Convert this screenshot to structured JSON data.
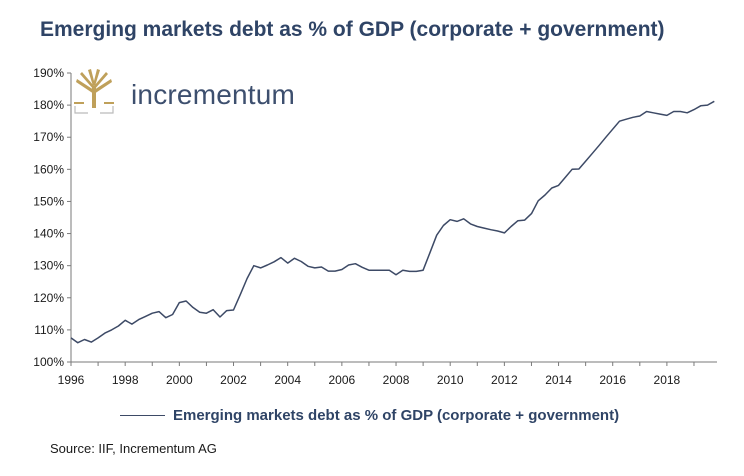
{
  "title": "Emerging markets debt as % of GDP (corporate + government)",
  "brand": {
    "name": "incrementum",
    "logo_icon": "tree-logo-icon",
    "color": "#bfa05a"
  },
  "source": "Source: IIF, Incrementum AG",
  "chart_data": {
    "type": "line",
    "title": "Emerging markets debt as % of GDP (corporate + government)",
    "xlabel": "",
    "ylabel": "",
    "xlim": [
      1996,
      2019.85
    ],
    "ylim": [
      100,
      190
    ],
    "x_ticks": [
      1996,
      1998,
      2000,
      2002,
      2004,
      2006,
      2008,
      2010,
      2012,
      2014,
      2016,
      2018
    ],
    "x_tick_labels": [
      "1996",
      "1998",
      "2000",
      "2002",
      "2004",
      "2006",
      "2008",
      "2010",
      "2012",
      "2014",
      "2016",
      "2018"
    ],
    "y_ticks": [
      100,
      110,
      120,
      130,
      140,
      150,
      160,
      170,
      180,
      190
    ],
    "y_tick_labels": [
      "100%",
      "110%",
      "120%",
      "130%",
      "140%",
      "150%",
      "160%",
      "170%",
      "180%",
      "190%"
    ],
    "grid": false,
    "legend_position": "bottom",
    "series": [
      {
        "name": "Emerging markets debt as % of GDP (corporate + government)",
        "color": "#3d4a66",
        "x": [
          1996.0,
          1996.25,
          1996.5,
          1996.75,
          1997.0,
          1997.25,
          1997.5,
          1997.75,
          1998.0,
          1998.25,
          1998.5,
          1998.75,
          1999.0,
          1999.25,
          1999.5,
          1999.75,
          2000.0,
          2000.25,
          2000.5,
          2000.75,
          2001.0,
          2001.25,
          2001.5,
          2001.75,
          2002.0,
          2002.25,
          2002.5,
          2002.75,
          2003.0,
          2003.25,
          2003.5,
          2003.75,
          2004.0,
          2004.25,
          2004.5,
          2004.75,
          2005.0,
          2005.25,
          2005.5,
          2005.75,
          2006.0,
          2006.25,
          2006.5,
          2006.75,
          2007.0,
          2007.25,
          2007.5,
          2007.75,
          2008.0,
          2008.25,
          2008.5,
          2008.75,
          2009.0,
          2009.25,
          2009.5,
          2009.75,
          2010.0,
          2010.25,
          2010.5,
          2010.75,
          2011.0,
          2011.25,
          2011.5,
          2011.75,
          2012.0,
          2012.25,
          2012.5,
          2012.75,
          2013.0,
          2013.25,
          2013.5,
          2013.75,
          2014.0,
          2014.25,
          2014.5,
          2014.75,
          2015.0,
          2015.25,
          2015.5,
          2015.75,
          2016.0,
          2016.25,
          2016.5,
          2016.75,
          2017.0,
          2017.25,
          2017.5,
          2017.75,
          2018.0,
          2018.25,
          2018.5,
          2018.75,
          2019.0,
          2019.25,
          2019.5,
          2019.75
        ],
        "y": [
          107.5,
          106.0,
          107.0,
          106.2,
          107.5,
          109.0,
          110.0,
          111.2,
          113.0,
          111.8,
          113.2,
          114.2,
          115.2,
          115.7,
          113.8,
          114.8,
          118.5,
          119.0,
          117.0,
          115.5,
          115.2,
          116.3,
          114.0,
          116.0,
          116.2,
          121.0,
          126.0,
          130.0,
          129.3,
          130.2,
          131.2,
          132.5,
          130.8,
          132.3,
          131.3,
          129.8,
          129.3,
          129.6,
          128.3,
          128.3,
          128.8,
          130.2,
          130.6,
          129.5,
          128.6,
          128.6,
          128.6,
          128.6,
          127.2,
          128.6,
          128.2,
          128.2,
          128.6,
          134.0,
          139.5,
          142.5,
          144.3,
          143.8,
          144.6,
          143.0,
          142.2,
          141.7,
          141.2,
          140.8,
          140.2,
          142.2,
          144.0,
          144.2,
          146.2,
          150.2,
          152.0,
          154.2,
          155.0,
          157.5,
          160.0,
          160.1,
          162.5,
          165.0,
          167.5,
          170.0,
          172.5,
          175.0,
          175.6,
          176.2,
          176.6,
          178.0,
          177.6,
          177.2,
          176.8,
          178.0,
          178.0,
          177.6,
          178.6,
          179.8,
          180.0,
          181.2
        ]
      }
    ]
  }
}
